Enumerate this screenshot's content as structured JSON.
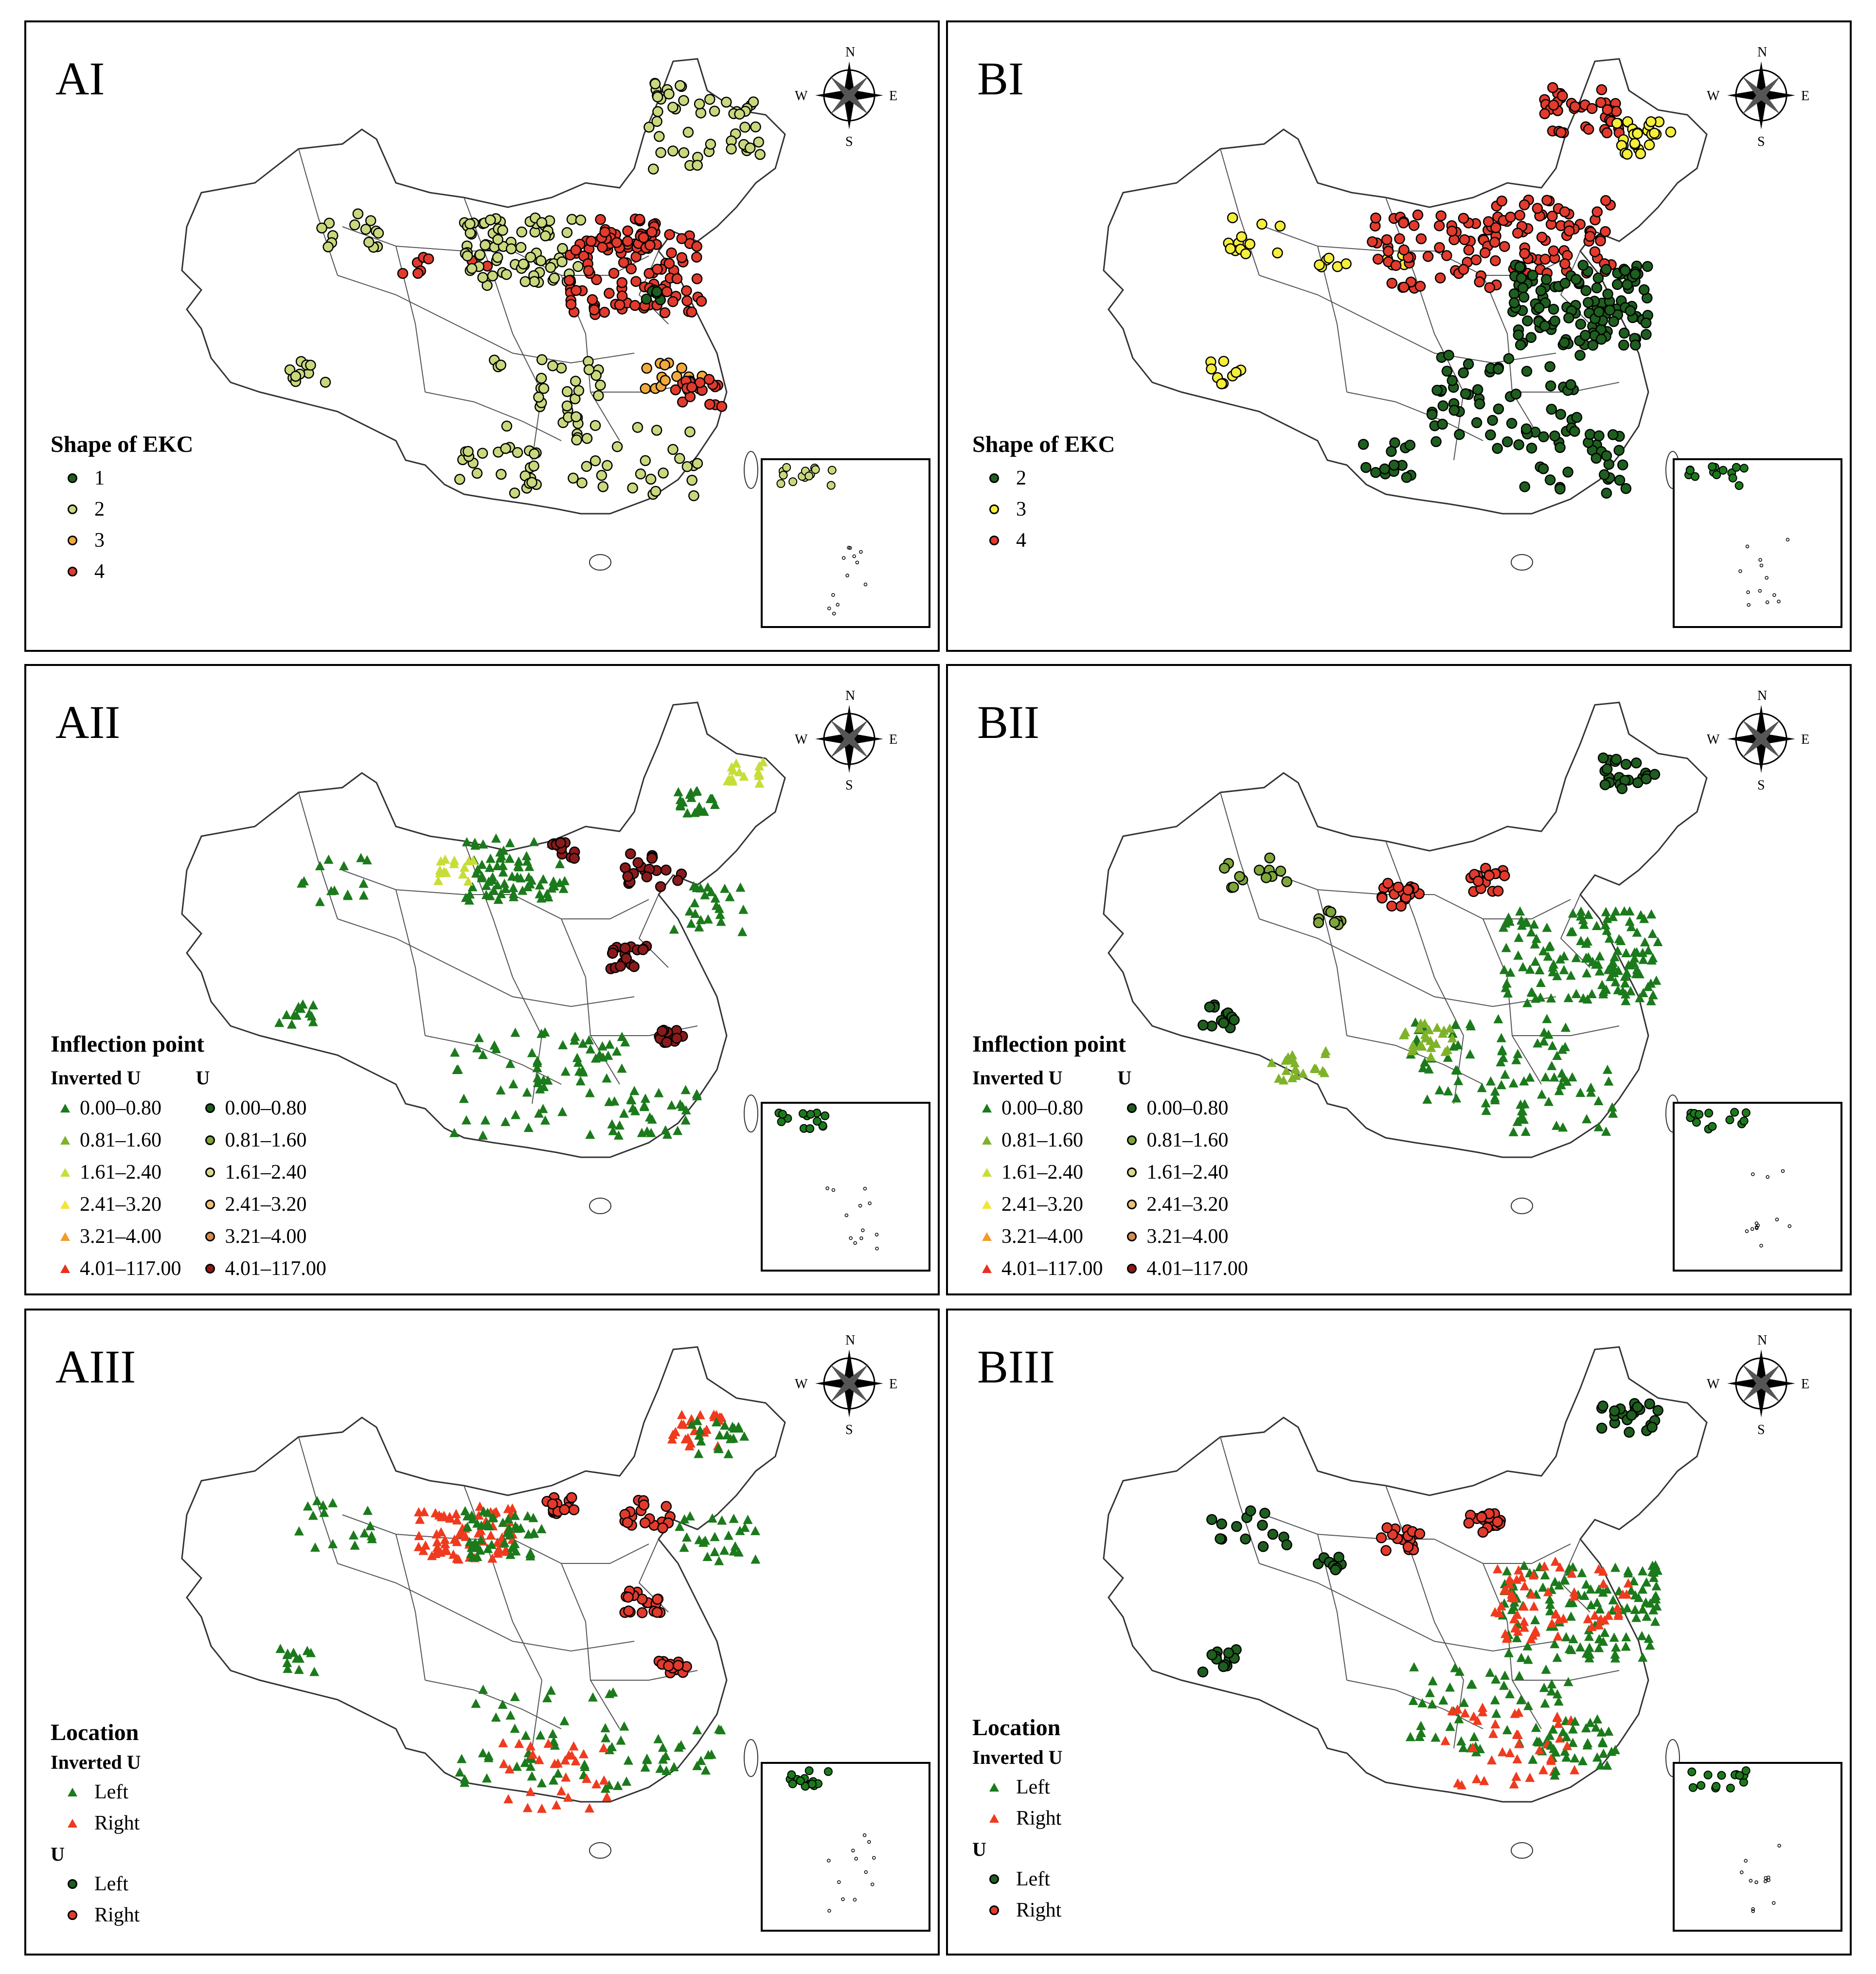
{
  "panels": {
    "AI": {
      "label": "AI",
      "legend_title": "Shape of EKC",
      "items": [
        {
          "value": "1",
          "color": "#1e5e1e"
        },
        {
          "value": "2",
          "color": "#c9d87d"
        },
        {
          "value": "3",
          "color": "#f2a93b"
        },
        {
          "value": "4",
          "color": "#e23a2c"
        }
      ]
    },
    "BI": {
      "label": "BI",
      "legend_title": "Shape of EKC",
      "items": [
        {
          "value": "2",
          "color": "#1e5e1e"
        },
        {
          "value": "3",
          "color": "#f5ee3b"
        },
        {
          "value": "4",
          "color": "#e23a2c"
        }
      ]
    },
    "AII": {
      "label": "AII",
      "legend_title": "Inflection point"
    },
    "BII": {
      "label": "BII",
      "legend_title": "Inflection point"
    },
    "AIII": {
      "label": "AIII",
      "legend_title": "Location"
    },
    "BIII": {
      "label": "BIII",
      "legend_title": "Location"
    }
  },
  "inflection_legend": {
    "inverted_u_label": "Inverted U",
    "u_label": "U",
    "ranges": [
      "0.00–0.80",
      "0.81–1.60",
      "1.61–2.40",
      "2.41–3.20",
      "3.21–4.00",
      "4.01–117.00"
    ],
    "tri_colors": [
      "#1b7a1b",
      "#7fb22a",
      "#c8dd37",
      "#f2e43a",
      "#f29a2e",
      "#e8301f"
    ],
    "dot_colors": [
      "#1e5e1e",
      "#7fa63a",
      "#d8d98a",
      "#f0c070",
      "#d98a4a",
      "#8b1a1a"
    ]
  },
  "location_legend": {
    "inverted_u_label": "Inverted U",
    "u_label": "U",
    "left_label": "Left",
    "right_label": "Right",
    "left_color": "#1b7a1b",
    "right_color": "#f03a1e",
    "u_left_color": "#1e5e1e",
    "u_right_color": "#e23a2c"
  },
  "compass": {
    "n": "N",
    "s": "S",
    "e": "E",
    "w": "W"
  }
}
